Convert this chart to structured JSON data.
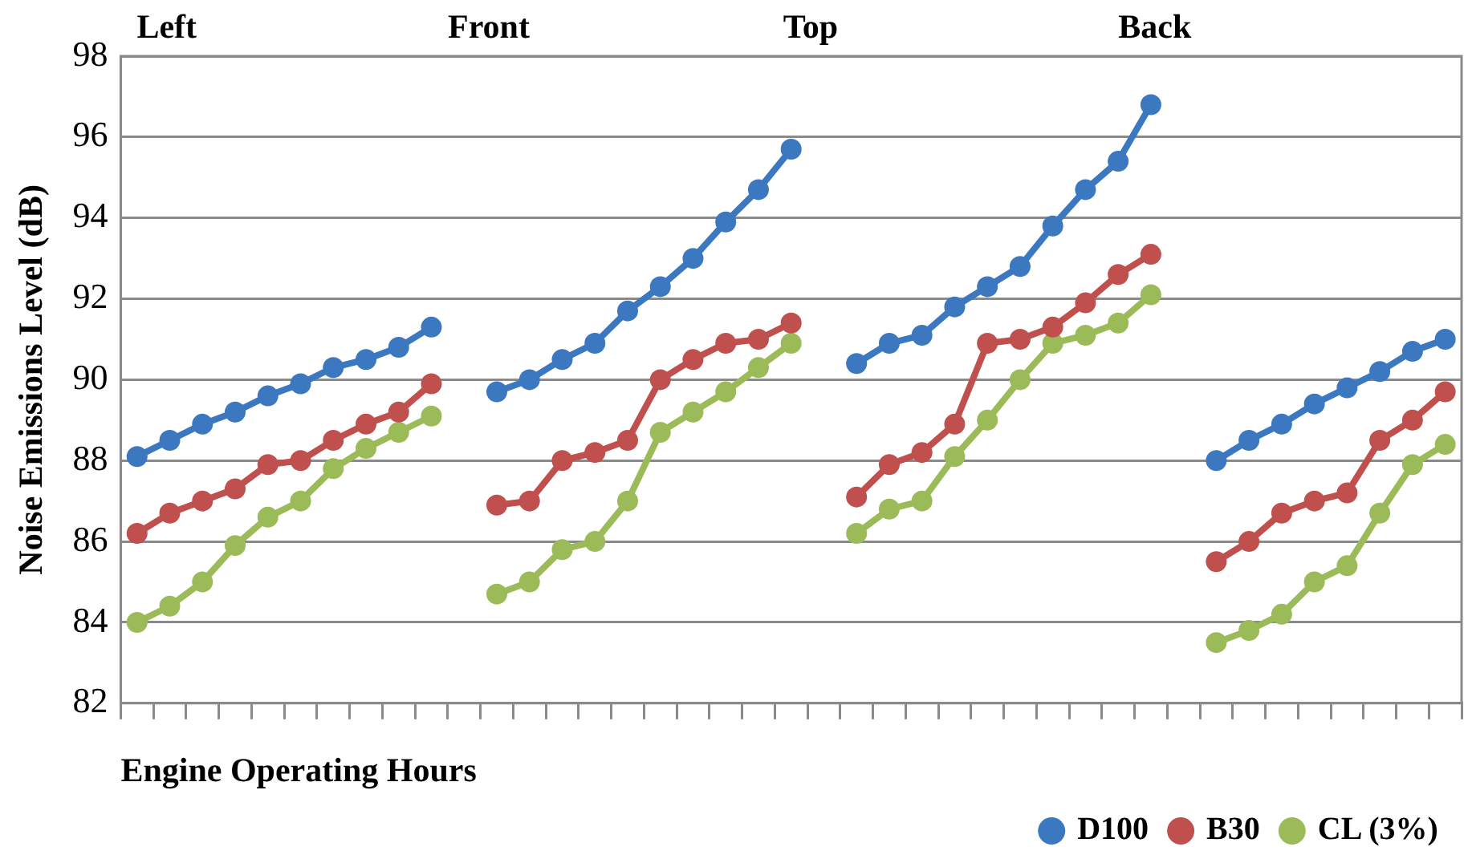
{
  "chart_data": {
    "type": "line",
    "xlabel": "Engine Operating Hours",
    "ylabel": "Noise Emissions Level (dB)",
    "annotations": [
      "Left",
      "Front",
      "Top",
      "Back"
    ],
    "categories": [
      null,
      null,
      null,
      null,
      null,
      null,
      null,
      null,
      null,
      null,
      null,
      null,
      null,
      null,
      null,
      null,
      null,
      null,
      null,
      null,
      null,
      null,
      null,
      null,
      null,
      null,
      null,
      null,
      null,
      null,
      null,
      null,
      null,
      null,
      null,
      null,
      null,
      null,
      null,
      null,
      null
    ],
    "ylim": [
      82,
      98
    ],
    "yticks": [
      82,
      84,
      86,
      88,
      90,
      92,
      94,
      96,
      98
    ],
    "grid": "y",
    "legend": "bottom right",
    "marker": "circle",
    "line_style": "solid",
    "series": [
      {
        "name": "D100",
        "color": "#3c78c0",
        "values": [
          88.1,
          88.5,
          88.9,
          89.2,
          89.6,
          89.9,
          90.3,
          90.5,
          90.8,
          91.3,
          null,
          89.7,
          90.0,
          90.5,
          90.9,
          91.7,
          92.3,
          93.0,
          93.9,
          94.7,
          95.7,
          null,
          90.4,
          90.9,
          91.1,
          91.8,
          92.3,
          92.8,
          93.8,
          94.7,
          95.4,
          96.8,
          null,
          88.0,
          88.5,
          88.9,
          89.4,
          89.8,
          90.2,
          90.7,
          91.0
        ]
      },
      {
        "name": "B30",
        "color": "#c0504d",
        "values": [
          86.2,
          86.7,
          87.0,
          87.3,
          87.9,
          88.0,
          88.5,
          88.9,
          89.2,
          89.9,
          null,
          86.9,
          87.0,
          88.0,
          88.2,
          88.5,
          90.0,
          90.5,
          90.9,
          91.0,
          91.4,
          null,
          87.1,
          87.9,
          88.2,
          88.9,
          90.9,
          91.0,
          91.3,
          91.9,
          92.6,
          93.1,
          null,
          85.5,
          86.0,
          86.7,
          87.0,
          87.2,
          88.5,
          89.0,
          89.7
        ]
      },
      {
        "name": "CL (3%)",
        "color": "#9bbb59",
        "values": [
          84.0,
          84.4,
          85.0,
          85.9,
          86.6,
          87.0,
          87.8,
          88.3,
          88.7,
          89.1,
          null,
          84.7,
          85.0,
          85.8,
          86.0,
          87.0,
          88.7,
          89.2,
          89.7,
          90.3,
          90.9,
          null,
          86.2,
          86.8,
          87.0,
          88.1,
          89.0,
          90.0,
          90.9,
          91.1,
          91.4,
          92.1,
          null,
          83.5,
          83.8,
          84.2,
          85.0,
          85.4,
          86.7,
          87.9,
          88.4
        ]
      }
    ]
  }
}
